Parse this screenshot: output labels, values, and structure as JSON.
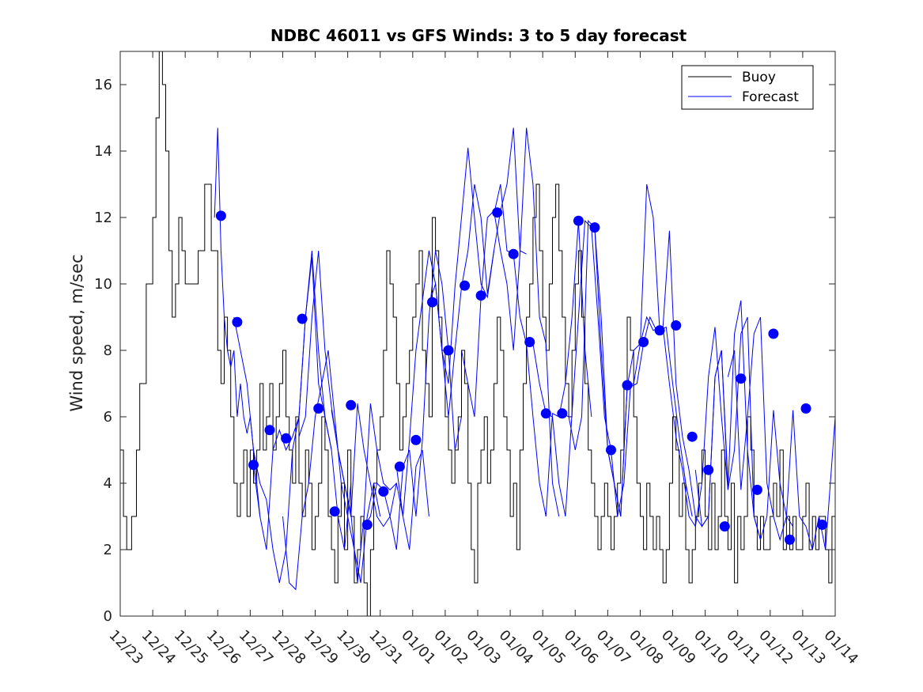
{
  "chart_data": {
    "type": "line",
    "title": "NDBC 46011 vs GFS Winds: 3 to 5 day forecast",
    "xlabel": "",
    "ylabel": "Wind speed, m/sec",
    "xlim": [
      0,
      22
    ],
    "ylim": [
      0,
      17
    ],
    "yticks": [
      0,
      2,
      4,
      6,
      8,
      10,
      12,
      14,
      16
    ],
    "xtick_labels": [
      "12/23",
      "12/24",
      "12/25",
      "12/26",
      "12/27",
      "12/28",
      "12/29",
      "12/30",
      "12/31",
      "01/01",
      "01/02",
      "01/03",
      "01/04",
      "01/05",
      "01/06",
      "01/07",
      "01/08",
      "01/09",
      "01/10",
      "01/11",
      "01/12",
      "01/13",
      "01/14"
    ],
    "legend": {
      "position": "top-right",
      "entries": [
        "Buoy",
        "Forecast"
      ]
    },
    "colors": {
      "buoy": "#000000",
      "forecast": "#0000ff",
      "markers": "#0000ff"
    },
    "buoy": {
      "name": "Buoy",
      "note": "x in days since 12/23, y in m/sec (approximate trace)",
      "x": [
        0,
        0.1,
        0.2,
        0.35,
        0.5,
        0.6,
        0.8,
        1.0,
        1.1,
        1.2,
        1.3,
        1.4,
        1.5,
        1.6,
        1.7,
        1.8,
        1.9,
        2.0,
        2.2,
        2.4,
        2.6,
        2.8,
        3.0,
        3.1,
        3.2,
        3.3,
        3.4,
        3.5,
        3.6,
        3.7,
        3.8,
        3.9,
        4.0,
        4.1,
        4.2,
        4.3,
        4.4,
        4.5,
        4.6,
        4.7,
        4.8,
        4.9,
        5.0,
        5.1,
        5.2,
        5.3,
        5.4,
        5.5,
        5.6,
        5.7,
        5.8,
        5.9,
        6.0,
        6.1,
        6.2,
        6.3,
        6.4,
        6.5,
        6.6,
        6.7,
        6.8,
        6.9,
        7.0,
        7.1,
        7.2,
        7.3,
        7.4,
        7.5,
        7.6,
        7.7,
        7.8,
        7.9,
        8.0,
        8.1,
        8.2,
        8.3,
        8.4,
        8.5,
        8.6,
        8.7,
        8.8,
        8.9,
        9.0,
        9.1,
        9.2,
        9.3,
        9.4,
        9.5,
        9.6,
        9.7,
        9.8,
        9.9,
        10.0,
        10.1,
        10.2,
        10.3,
        10.4,
        10.5,
        10.6,
        10.7,
        10.8,
        10.9,
        11.0,
        11.1,
        11.2,
        11.3,
        11.4,
        11.5,
        11.6,
        11.7,
        11.8,
        11.9,
        12.0,
        12.1,
        12.2,
        12.3,
        12.4,
        12.5,
        12.6,
        12.7,
        12.8,
        12.9,
        13.0,
        13.1,
        13.2,
        13.3,
        13.4,
        13.5,
        13.6,
        13.7,
        13.8,
        13.9,
        14.0,
        14.1,
        14.2,
        14.3,
        14.4,
        14.5,
        14.6,
        14.7,
        14.8,
        14.9,
        15.0,
        15.1,
        15.2,
        15.3,
        15.4,
        15.5,
        15.6,
        15.7,
        15.8,
        15.9,
        16.0,
        16.1,
        16.2,
        16.3,
        16.4,
        16.5,
        16.6,
        16.7,
        16.8,
        16.9,
        17.0,
        17.1,
        17.2,
        17.3,
        17.4,
        17.5,
        17.6,
        17.7,
        17.8,
        17.9,
        18.0,
        18.1,
        18.2,
        18.3,
        18.4,
        18.5,
        18.6,
        18.7,
        18.8,
        18.9,
        19.0,
        19.1,
        19.2,
        19.3,
        19.4,
        19.5,
        19.6,
        19.7,
        19.8,
        19.9,
        20.0,
        20.1,
        20.2,
        20.3,
        20.4,
        20.5,
        20.6,
        20.7,
        20.8,
        20.9,
        21.0,
        21.1,
        21.2,
        21.3,
        21.4,
        21.5,
        21.6,
        21.7,
        21.8,
        21.9,
        22.0
      ],
      "y": [
        5,
        3,
        2,
        3,
        5,
        7,
        10,
        12,
        15,
        17,
        16,
        14,
        11,
        9,
        10,
        12,
        11,
        10,
        10,
        11,
        13,
        11,
        8,
        7,
        9,
        8,
        6,
        4,
        3,
        4,
        5,
        3,
        5,
        4,
        5,
        7,
        5,
        6,
        7,
        5,
        6,
        7,
        8,
        6,
        5,
        4,
        6,
        4,
        3,
        5,
        4,
        2,
        3,
        4,
        6,
        5,
        3,
        2,
        1,
        3,
        4,
        2,
        5,
        3,
        1,
        2,
        3,
        1,
        0,
        2,
        4,
        5,
        6,
        8,
        11,
        10,
        9,
        7,
        5,
        6,
        7,
        8,
        9,
        10,
        11,
        8,
        7,
        6,
        12,
        11,
        9,
        8,
        6,
        5,
        4,
        5,
        6,
        8,
        7,
        4,
        2,
        1,
        4,
        5,
        6,
        4,
        5,
        7,
        9,
        8,
        6,
        5,
        3,
        4,
        2,
        5,
        7,
        9,
        10,
        12,
        13,
        11,
        9,
        8,
        10,
        12,
        13,
        11,
        9,
        7,
        6,
        8,
        10,
        11,
        9,
        7,
        5,
        4,
        3,
        2,
        3,
        4,
        3,
        2,
        3,
        4,
        5,
        7,
        9,
        8,
        6,
        4,
        3,
        2,
        4,
        3,
        2,
        3,
        2,
        1,
        2,
        4,
        6,
        5,
        3,
        4,
        2,
        1,
        2,
        3,
        4,
        5,
        3,
        2,
        4,
        2,
        3,
        5,
        3,
        2,
        4,
        1,
        3,
        2,
        3,
        6,
        5,
        3,
        2,
        3,
        2,
        2,
        3,
        4,
        3,
        5,
        2,
        3,
        2,
        3,
        2,
        2,
        3,
        4,
        2,
        3,
        2,
        3,
        3,
        2,
        1,
        3,
        3
      ]
    },
    "forecast_runs": [
      {
        "x": [
          2.9,
          3.0,
          3.1,
          3.2,
          3.3,
          3.4,
          3.5,
          3.6,
          3.7,
          3.8,
          3.9,
          4.0,
          4.1,
          4.2,
          4.3
        ],
        "y": [
          12,
          14.7,
          11,
          9,
          8,
          7.5,
          8,
          6,
          7,
          6,
          5.5,
          6,
          5,
          4,
          3
        ]
      },
      {
        "x": [
          3.5,
          3.7,
          3.9,
          4.1,
          4.3,
          4.5,
          4.7,
          4.9,
          5.1,
          5.3,
          5.5,
          5.7,
          5.9,
          6.1,
          6.3,
          6.5
        ],
        "y": [
          9,
          8,
          7,
          5,
          4,
          3.5,
          2,
          1,
          2,
          5,
          6,
          9,
          11,
          8,
          6,
          5
        ]
      },
      {
        "x": [
          4.1,
          4.3,
          4.5,
          4.7,
          4.9,
          5.1,
          5.3,
          5.5,
          5.7,
          5.9,
          6.1,
          6.3,
          6.5,
          6.7,
          6.9,
          7.1
        ],
        "y": [
          4.5,
          3,
          2,
          5,
          5.6,
          5,
          5.4,
          6,
          9,
          10.8,
          7,
          6,
          5,
          3,
          2,
          4
        ]
      },
      {
        "x": [
          5.0,
          5.2,
          5.4,
          5.6,
          5.8,
          6.0,
          6.2,
          6.4,
          6.6,
          6.8,
          7.0,
          7.2,
          7.4,
          7.6,
          7.8,
          8.0
        ],
        "y": [
          3,
          1,
          0.8,
          3,
          4,
          6,
          7,
          8,
          6,
          4,
          3,
          2,
          1,
          3,
          4,
          3
        ]
      },
      {
        "x": [
          5.5,
          5.7,
          5.9,
          6.1,
          6.3,
          6.5,
          6.7,
          6.9,
          7.1,
          7.3,
          7.5,
          7.7,
          7.9,
          8.1,
          8.3,
          8.5
        ],
        "y": [
          5.4,
          6,
          9,
          11,
          8,
          6.3,
          5,
          4,
          3,
          6.4,
          5,
          4,
          3,
          2.7,
          3,
          4
        ]
      },
      {
        "x": [
          6.5,
          6.7,
          6.9,
          7.1,
          7.3,
          7.5,
          7.7,
          7.9,
          8.1,
          8.3,
          8.5,
          8.7,
          8.9,
          9.1,
          9.3,
          9.5
        ],
        "y": [
          6.2,
          5,
          4,
          3.1,
          1,
          3,
          6.4,
          5,
          4,
          3.8,
          4,
          3,
          2,
          4.5,
          5,
          3
        ]
      },
      {
        "x": [
          7.5,
          7.7,
          7.9,
          8.1,
          8.3,
          8.5,
          8.7,
          8.9,
          9.1,
          9.3,
          9.5,
          9.7,
          9.9,
          10.1,
          10.3,
          10.5
        ],
        "y": [
          2.7,
          3,
          4,
          3.8,
          3,
          2,
          4.5,
          5,
          3,
          5.3,
          9,
          11,
          10,
          8,
          5,
          6
        ]
      },
      {
        "x": [
          8.5,
          8.7,
          8.9,
          9.1,
          9.3,
          9.5,
          9.7,
          9.9,
          10.1,
          10.3,
          10.5,
          10.7,
          10.9,
          11.1,
          11.3,
          11.5
        ],
        "y": [
          4.5,
          3,
          5.3,
          8,
          9.5,
          11,
          10,
          8,
          7,
          9.9,
          12,
          14.1,
          12,
          10,
          9.6,
          11
        ]
      },
      {
        "x": [
          9.5,
          9.7,
          9.9,
          10.1,
          10.3,
          10.5,
          10.7,
          10.9,
          11.1,
          11.3,
          11.5,
          11.7,
          11.9,
          12.1,
          12.3,
          12.5
        ],
        "y": [
          9.4,
          10,
          8,
          6,
          8,
          9.9,
          11,
          13,
          12,
          9.7,
          11,
          12.2,
          13,
          14.7,
          11,
          10.9
        ]
      },
      {
        "x": [
          10.5,
          10.7,
          10.9,
          11.1,
          11.3,
          11.5,
          11.7,
          11.9,
          12.1,
          12.3,
          12.5,
          12.7,
          12.9,
          13.1,
          13.3,
          13.5
        ],
        "y": [
          8,
          7,
          6,
          9.6,
          12,
          12.2,
          11,
          10,
          8,
          10.9,
          14.7,
          13,
          9,
          8.2,
          4,
          3
        ]
      },
      {
        "x": [
          11.5,
          11.7,
          11.9,
          12.1,
          12.3,
          12.5,
          12.7,
          12.9,
          13.1,
          13.3,
          13.5,
          13.7,
          13.9,
          14.1,
          14.3,
          14.5
        ],
        "y": [
          12.1,
          13,
          11,
          10.9,
          9,
          8.2,
          6,
          4,
          3,
          6.1,
          6,
          7,
          9,
          11.9,
          8,
          6
        ]
      },
      {
        "x": [
          12.7,
          12.9,
          13.1,
          13.3,
          13.5,
          13.7,
          13.9,
          14.1,
          14.3,
          14.5,
          14.7,
          14.9,
          15.1,
          15.3,
          15.5,
          15.7
        ],
        "y": [
          8.2,
          7,
          6.1,
          6,
          4,
          3,
          6.1,
          9,
          11.9,
          11.7,
          9,
          6,
          5,
          3,
          4,
          6.9
        ]
      },
      {
        "x": [
          13.6,
          13.8,
          14.0,
          14.2,
          14.4,
          14.6,
          14.8,
          15.0,
          15.2,
          15.4,
          15.6,
          15.8,
          16.0,
          16.2,
          16.4,
          16.6
        ],
        "y": [
          6.1,
          6,
          5,
          6,
          11.9,
          11.7,
          8,
          5,
          4,
          3,
          6.9,
          7,
          8.2,
          9,
          8.6,
          8.7
        ]
      },
      {
        "x": [
          14.6,
          14.8,
          15.0,
          15.2,
          15.4,
          15.6,
          15.8,
          16.0,
          16.2,
          16.4,
          16.6,
          16.8,
          17.0,
          17.2,
          17.4,
          17.6
        ],
        "y": [
          11.7,
          9,
          5,
          4,
          3,
          6.9,
          8,
          8.2,
          13,
          12,
          8.6,
          8.7,
          7,
          5.4,
          4,
          3
        ]
      },
      {
        "x": [
          15.7,
          15.9,
          16.1,
          16.3,
          16.5,
          16.7,
          16.9,
          17.1,
          17.3,
          17.5,
          17.7,
          17.9,
          18.1,
          18.3,
          18.5,
          18.7
        ],
        "y": [
          6.9,
          7,
          8.2,
          9,
          8.6,
          8.7,
          11.6,
          7,
          5.4,
          4.4,
          3,
          2.7,
          3,
          7.2,
          8,
          4
        ]
      },
      {
        "x": [
          16.7,
          16.9,
          17.1,
          17.3,
          17.5,
          17.7,
          17.9,
          18.1,
          18.3,
          18.5,
          18.7,
          18.9,
          19.1,
          19.3,
          19.5,
          19.7
        ],
        "y": [
          8.7,
          7,
          5.4,
          4.4,
          3,
          2.7,
          4,
          7.2,
          8.7,
          6,
          3.8,
          8.5,
          9.5,
          5,
          3,
          2.3
        ]
      },
      {
        "x": [
          17.7,
          17.9,
          18.1,
          18.3,
          18.5,
          18.7,
          18.9,
          19.1,
          19.3,
          19.5,
          19.7,
          19.9,
          20.1,
          20.3,
          20.5,
          20.7
        ],
        "y": [
          4.4,
          2.7,
          3,
          7.2,
          8,
          3.8,
          5,
          8.5,
          9,
          3,
          2.3,
          3,
          6.2,
          4,
          3,
          2.7
        ]
      },
      {
        "x": [
          18.7,
          18.9,
          19.1,
          19.3,
          19.5,
          19.7,
          19.9,
          20.1,
          20.3,
          20.5,
          20.7,
          20.9,
          21.1,
          21.3,
          21.5,
          21.7,
          22.0
        ],
        "y": [
          7.2,
          8,
          3.8,
          6,
          8.5,
          9,
          4,
          3,
          2.3,
          3,
          6.2,
          3,
          2.7,
          2,
          3,
          2,
          6
        ]
      }
    ],
    "markers": {
      "x": [
        3.1,
        3.6,
        4.1,
        4.6,
        5.1,
        5.6,
        6.1,
        6.6,
        7.1,
        7.6,
        8.1,
        8.6,
        9.1,
        9.6,
        10.1,
        10.6,
        11.1,
        11.6,
        12.1,
        12.6,
        13.1,
        13.6,
        14.1,
        14.6,
        15.1,
        15.6,
        16.1,
        16.6,
        17.1,
        17.6,
        18.1,
        18.6,
        19.1,
        19.6,
        20.1,
        20.6,
        21.1,
        21.6
      ],
      "y": [
        12.05,
        8.85,
        4.55,
        5.6,
        5.35,
        8.95,
        6.25,
        3.15,
        6.35,
        2.75,
        3.75,
        4.5,
        5.3,
        9.45,
        8.0,
        9.95,
        9.65,
        12.15,
        10.9,
        8.25,
        6.1,
        6.1,
        11.9,
        11.7,
        5.0,
        6.95,
        8.25,
        8.6,
        8.75,
        5.4,
        4.4,
        2.7,
        7.15,
        3.8,
        8.5,
        2.3,
        6.25,
        2.75
      ]
    }
  }
}
